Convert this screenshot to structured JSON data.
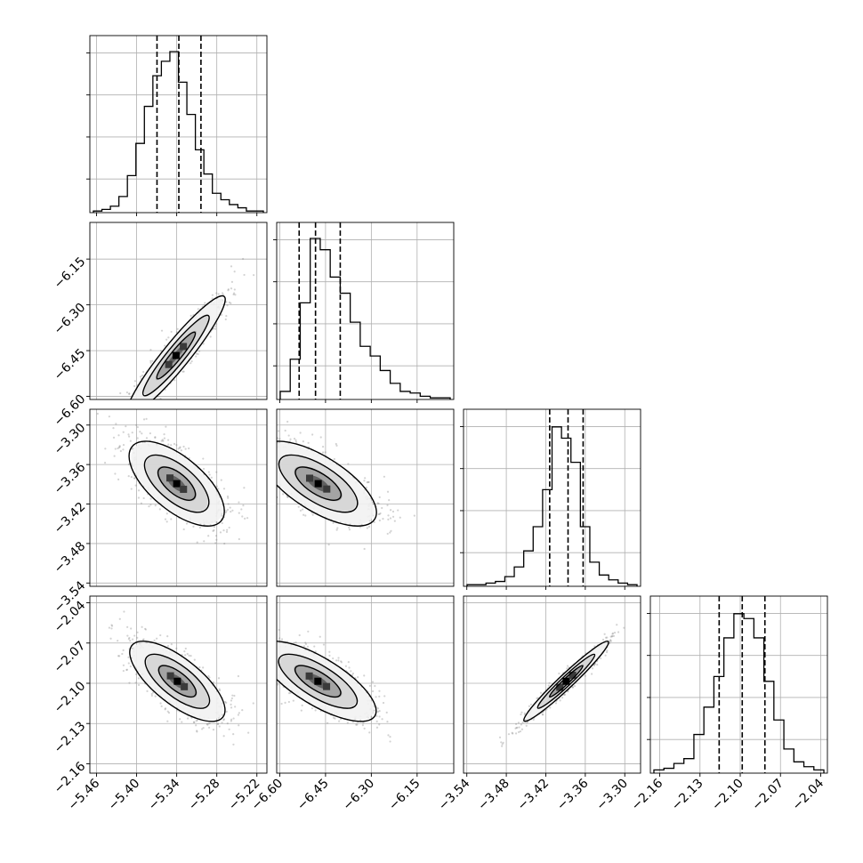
{
  "chart_data": {
    "type": "corner",
    "grid": true,
    "parameters": [
      {
        "ticks": [
          "−5.46",
          "−5.40",
          "−5.34",
          "−5.28",
          "−5.22"
        ],
        "range": [
          -5.47,
          -5.205
        ],
        "hist": [
          0.01,
          0.02,
          0.04,
          0.1,
          0.23,
          0.43,
          0.66,
          0.85,
          0.94,
          1.0,
          0.81,
          0.61,
          0.39,
          0.24,
          0.12,
          0.08,
          0.05,
          0.03,
          0.01,
          0.01
        ],
        "quantiles": [
          -5.3695,
          -5.3368,
          -5.3037
        ]
      },
      {
        "ticks": [
          "−6.60",
          "−6.45",
          "−6.30",
          "−6.15"
        ],
        "range": [
          -6.61,
          -6.03
        ],
        "hist": [
          0.05,
          0.25,
          0.6,
          1.0,
          0.93,
          0.76,
          0.66,
          0.48,
          0.33,
          0.27,
          0.18,
          0.1,
          0.05,
          0.04,
          0.02,
          0.01,
          0.01
        ],
        "quantiles": [
          -6.5364,
          -6.4828,
          -6.4018
        ]
      },
      {
        "ticks": [
          "−3.54",
          "−3.48",
          "−3.42",
          "−3.36",
          "−3.30"
        ],
        "range": [
          -3.545,
          -3.276
        ],
        "hist": [
          0.01,
          0.01,
          0.02,
          0.03,
          0.06,
          0.12,
          0.22,
          0.37,
          0.6,
          0.99,
          0.92,
          0.77,
          0.37,
          0.15,
          0.07,
          0.04,
          0.02,
          0.01
        ],
        "quantiles": [
          -3.4141,
          -3.3862,
          -3.3633
        ]
      },
      {
        "ticks": [
          "−2.16",
          "−2.13",
          "−2.10",
          "−2.07",
          "−2.04"
        ],
        "range": [
          -2.167,
          -2.035
        ],
        "hist": [
          0.02,
          0.03,
          0.06,
          0.09,
          0.24,
          0.41,
          0.6,
          0.84,
          0.99,
          0.96,
          0.84,
          0.57,
          0.33,
          0.15,
          0.07,
          0.04,
          0.02
        ],
        "quantiles": [
          -2.1157,
          -2.0985,
          -2.0816
        ]
      }
    ],
    "pairs": [
      {
        "row": 1,
        "col": 0,
        "center": [
          -5.341,
          -6.466
        ],
        "sd": [
          0.032,
          0.085
        ],
        "rho": 0.94
      },
      {
        "row": 2,
        "col": 0,
        "center": [
          -5.34,
          -3.389
        ],
        "sd": [
          0.031,
          0.028
        ],
        "rho": -0.65
      },
      {
        "row": 2,
        "col": 1,
        "center": [
          -6.474,
          -3.389
        ],
        "sd": [
          0.083,
          0.028
        ],
        "rho": -0.68
      },
      {
        "row": 3,
        "col": 0,
        "center": [
          -5.339,
          -2.0985
        ],
        "sd": [
          0.031,
          0.013
        ],
        "rho": -0.72
      },
      {
        "row": 3,
        "col": 1,
        "center": [
          -6.475,
          -2.0985
        ],
        "sd": [
          0.083,
          0.013
        ],
        "rho": -0.74
      },
      {
        "row": 3,
        "col": 2,
        "center": [
          -3.389,
          -2.0985
        ],
        "sd": [
          0.028,
          0.013
        ],
        "rho": 0.97
      }
    ]
  }
}
